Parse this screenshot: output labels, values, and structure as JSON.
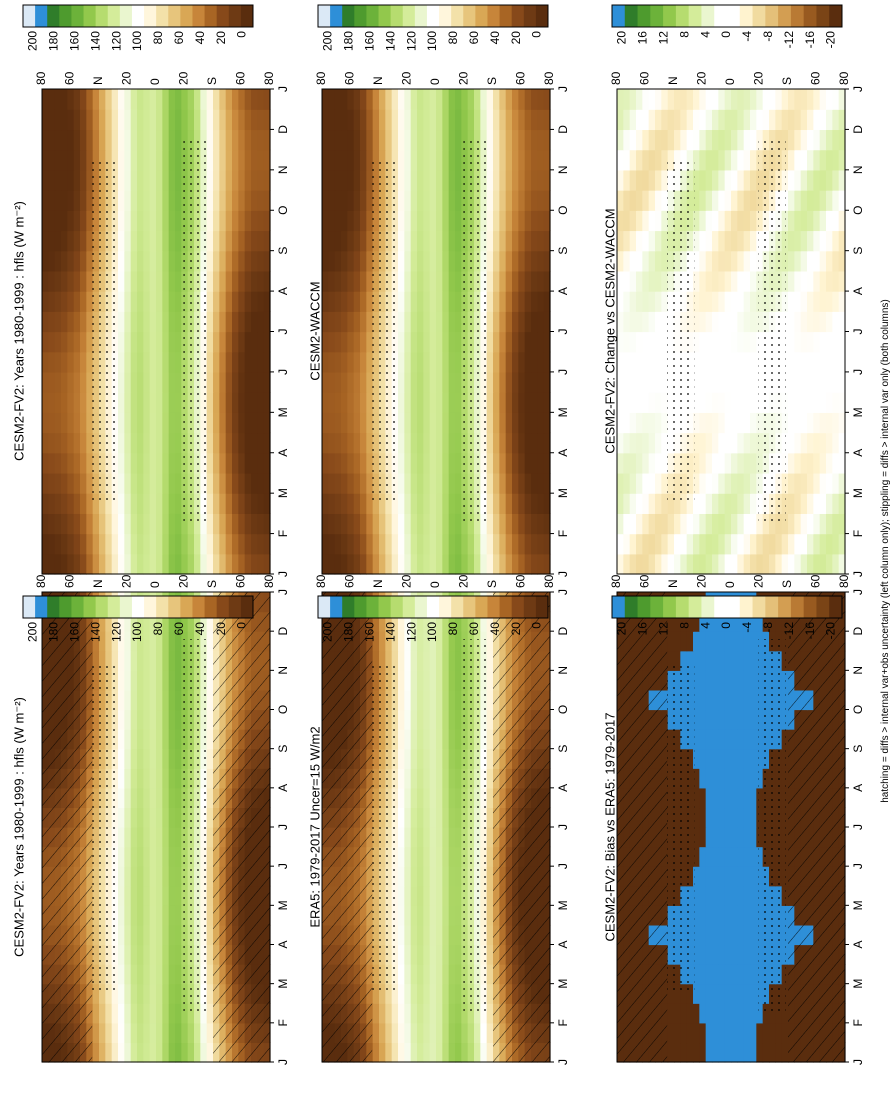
{
  "footer": "hatching = diffs > internal var+obs uncertainty (left column only); stippling = diffs > internal var only (both columns)",
  "colors": {
    "mean_scale": [
      "#dbe9f6",
      "#2e8fd8",
      "#2f7d2a",
      "#4e9b2e",
      "#6cb23a",
      "#92c84c",
      "#b6dc6f",
      "#d4ec9a",
      "#eaf6cf",
      "#ffffff",
      "#fff6dc",
      "#f3e1a9",
      "#e7c57c",
      "#d9a755",
      "#c7853a",
      "#a86524",
      "#87491a",
      "#6e3a14",
      "#5a2d0e"
    ],
    "diff_scale": [
      "#2e8fd8",
      "#2f7d2a",
      "#4e9b2e",
      "#6cb23a",
      "#92c84c",
      "#b6dc6f",
      "#d4ec9a",
      "#eaf6cf",
      "#ffffff",
      "#ffffff",
      "#fff3cf",
      "#f1dba0",
      "#e4c079",
      "#d39e52",
      "#b97a34",
      "#985a20",
      "#7a4416",
      "#5a2d0e"
    ]
  },
  "chart_data": [
    {
      "type": "heatmap",
      "title": "CESM2-FV2: Years 1980-1999 : hfls (W m⁻²)",
      "x": [
        "J",
        "F",
        "M",
        "A",
        "M",
        "J",
        "J",
        "A",
        "S",
        "O",
        "N",
        "D",
        "J"
      ],
      "y": [
        "80",
        "60",
        "N",
        "20",
        "0",
        "20",
        "S",
        "60",
        "80"
      ],
      "colorbar": [
        "200",
        "180",
        "160",
        "140",
        "120",
        "100",
        "80",
        "60",
        "40",
        "20",
        "0"
      ],
      "clim": [
        0,
        200
      ],
      "hatching": true,
      "stippling": true,
      "profile": [
        {
          "lat": -90,
          "v": 5
        },
        {
          "lat": -75,
          "v": 10
        },
        {
          "lat": -60,
          "v": 35
        },
        {
          "lat": -45,
          "v": 75
        },
        {
          "lat": -30,
          "v": 130
        },
        {
          "lat": -15,
          "v": 150
        },
        {
          "lat": 0,
          "v": 120
        },
        {
          "lat": 15,
          "v": 130
        },
        {
          "lat": 30,
          "v": 95
        },
        {
          "lat": 45,
          "v": 60
        },
        {
          "lat": 60,
          "v": 25
        },
        {
          "lat": 75,
          "v": 10
        },
        {
          "lat": 90,
          "v": 4
        }
      ]
    },
    {
      "type": "heatmap",
      "title": "CESM2-FV2: Years 1980-1999 : hfls (W m⁻²)",
      "x": [
        "J",
        "F",
        "M",
        "A",
        "M",
        "J",
        "J",
        "A",
        "S",
        "O",
        "N",
        "D",
        "J"
      ],
      "y": [
        "80",
        "60",
        "N",
        "20",
        "0",
        "20",
        "S",
        "60",
        "80"
      ],
      "colorbar": [
        "200",
        "180",
        "160",
        "140",
        "120",
        "100",
        "80",
        "60",
        "40",
        "20",
        "0"
      ],
      "clim": [
        0,
        200
      ],
      "hatching": false,
      "stippling": true,
      "profile": [
        {
          "lat": -90,
          "v": 5
        },
        {
          "lat": -75,
          "v": 10
        },
        {
          "lat": -60,
          "v": 35
        },
        {
          "lat": -45,
          "v": 75
        },
        {
          "lat": -30,
          "v": 130
        },
        {
          "lat": -15,
          "v": 150
        },
        {
          "lat": 0,
          "v": 120
        },
        {
          "lat": 15,
          "v": 130
        },
        {
          "lat": 30,
          "v": 95
        },
        {
          "lat": 45,
          "v": 60
        },
        {
          "lat": 60,
          "v": 25
        },
        {
          "lat": 75,
          "v": 10
        },
        {
          "lat": 90,
          "v": 4
        }
      ]
    },
    {
      "type": "heatmap",
      "title": "ERA5: 1979-2017 Uncer=15 W/m2",
      "x": [
        "J",
        "F",
        "M",
        "A",
        "M",
        "J",
        "J",
        "A",
        "S",
        "O",
        "N",
        "D",
        "J"
      ],
      "y": [
        "80",
        "60",
        "N",
        "20",
        "0",
        "20",
        "S",
        "60",
        "80"
      ],
      "colorbar": [
        "200",
        "180",
        "160",
        "140",
        "120",
        "100",
        "80",
        "60",
        "40",
        "20",
        "0"
      ],
      "clim": [
        0,
        200
      ],
      "hatching": true,
      "stippling": true,
      "profile": [
        {
          "lat": -90,
          "v": 3
        },
        {
          "lat": -75,
          "v": 8
        },
        {
          "lat": -60,
          "v": 30
        },
        {
          "lat": -45,
          "v": 70
        },
        {
          "lat": -30,
          "v": 125
        },
        {
          "lat": -15,
          "v": 145
        },
        {
          "lat": 0,
          "v": 115
        },
        {
          "lat": 15,
          "v": 125
        },
        {
          "lat": 30,
          "v": 90
        },
        {
          "lat": 45,
          "v": 55
        },
        {
          "lat": 60,
          "v": 22
        },
        {
          "lat": 75,
          "v": 8
        },
        {
          "lat": 90,
          "v": 3
        }
      ]
    },
    {
      "type": "heatmap",
      "title": "CESM2-WACCM",
      "x": [
        "J",
        "F",
        "M",
        "A",
        "M",
        "J",
        "J",
        "A",
        "S",
        "O",
        "N",
        "D",
        "J"
      ],
      "y": [
        "80",
        "60",
        "N",
        "20",
        "0",
        "20",
        "S",
        "60",
        "80"
      ],
      "colorbar": [
        "200",
        "180",
        "160",
        "140",
        "120",
        "100",
        "80",
        "60",
        "40",
        "20",
        "0"
      ],
      "clim": [
        0,
        200
      ],
      "hatching": false,
      "stippling": true,
      "profile": [
        {
          "lat": -90,
          "v": 5
        },
        {
          "lat": -75,
          "v": 10
        },
        {
          "lat": -60,
          "v": 35
        },
        {
          "lat": -45,
          "v": 75
        },
        {
          "lat": -30,
          "v": 130
        },
        {
          "lat": -15,
          "v": 150
        },
        {
          "lat": 0,
          "v": 120
        },
        {
          "lat": 15,
          "v": 130
        },
        {
          "lat": 30,
          "v": 95
        },
        {
          "lat": 45,
          "v": 60
        },
        {
          "lat": 60,
          "v": 25
        },
        {
          "lat": 75,
          "v": 10
        },
        {
          "lat": 90,
          "v": 4
        }
      ]
    },
    {
      "type": "heatmap",
      "title": "CESM2-FV2: Bias vs ERA5: 1979-2017",
      "x": [
        "J",
        "F",
        "M",
        "A",
        "M",
        "J",
        "J",
        "A",
        "S",
        "O",
        "N",
        "D",
        "J"
      ],
      "y": [
        "80",
        "60",
        "N",
        "20",
        "0",
        "20",
        "S",
        "60",
        "80"
      ],
      "colorbar": [
        "20",
        "16",
        "12",
        "8",
        "4",
        "0",
        "-4",
        "-8",
        "-12",
        "-16",
        "-20"
      ],
      "clim": [
        -20,
        20
      ],
      "hatching": true,
      "stippling": true
    },
    {
      "type": "heatmap",
      "title": "CESM2-FV2: Change vs CESM2-WACCM",
      "x": [
        "J",
        "F",
        "M",
        "A",
        "M",
        "J",
        "J",
        "A",
        "S",
        "O",
        "N",
        "D",
        "J"
      ],
      "y": [
        "80",
        "60",
        "N",
        "20",
        "0",
        "20",
        "S",
        "60",
        "80"
      ],
      "colorbar": [
        "20",
        "16",
        "12",
        "8",
        "4",
        "0",
        "-4",
        "-8",
        "-12",
        "-16",
        "-20"
      ],
      "clim": [
        -20,
        20
      ],
      "hatching": false,
      "stippling": true
    }
  ]
}
